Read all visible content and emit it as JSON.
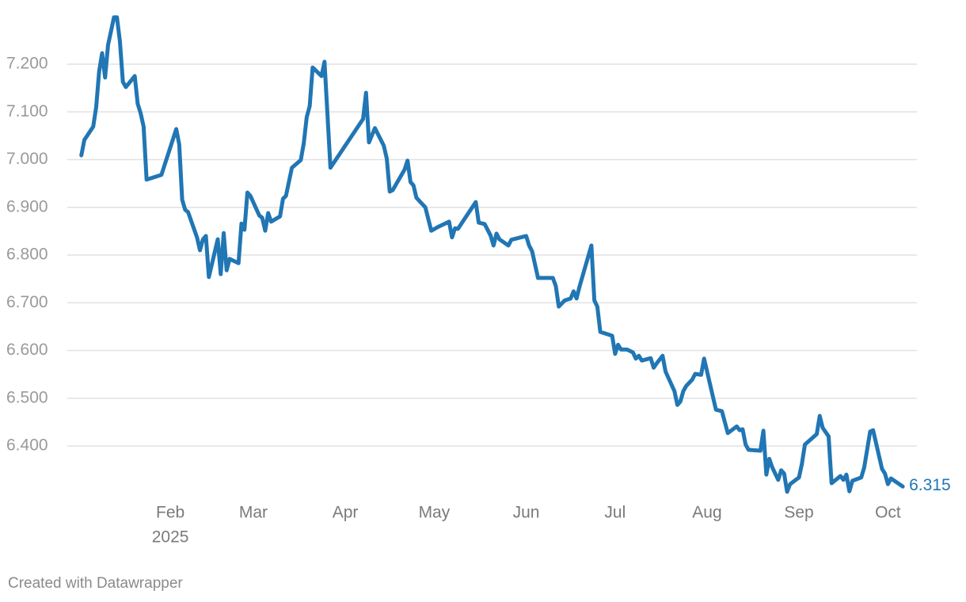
{
  "chart_data": {
    "type": "line",
    "color": "#2176b4",
    "x": [
      2,
      3,
      6,
      7,
      8,
      9,
      10,
      11,
      13,
      14,
      15,
      16,
      17,
      20,
      21,
      22,
      23,
      24,
      29,
      34,
      35,
      36,
      37,
      38,
      41,
      42,
      43,
      44,
      45,
      48,
      49,
      50,
      51,
      52,
      55,
      56,
      57,
      58,
      59,
      62,
      63,
      64,
      65,
      66,
      69,
      70,
      71,
      73,
      76,
      77,
      78,
      79,
      80,
      83,
      84,
      86,
      97,
      98,
      99,
      101,
      104,
      105,
      106,
      107,
      111,
      112,
      113,
      114,
      115,
      118,
      120,
      122,
      126,
      127,
      128,
      129,
      135,
      136,
      138,
      140,
      141,
      142,
      143,
      146,
      147,
      152,
      153,
      154,
      156,
      161,
      162,
      163,
      165,
      167,
      168,
      169,
      170,
      174,
      175,
      176,
      177,
      181,
      182,
      183,
      184,
      186,
      188,
      189,
      190,
      191,
      194,
      195,
      196,
      198,
      199,
      202,
      203,
      204,
      205,
      206,
      208,
      209,
      211,
      212,
      216,
      218,
      220,
      223,
      224,
      225,
      226,
      227,
      231,
      232,
      233,
      234,
      235,
      237,
      238,
      239,
      240,
      241,
      244,
      245,
      246,
      250,
      251,
      252,
      254,
      255,
      258,
      259,
      260,
      261,
      262,
      265,
      266,
      268,
      269,
      272,
      273,
      274,
      275,
      279
    ],
    "values": [
      7.009,
      7.041,
      7.069,
      7.11,
      7.185,
      7.223,
      7.172,
      7.24,
      7.298,
      7.298,
      7.248,
      7.163,
      7.152,
      7.175,
      7.117,
      7.097,
      7.069,
      6.958,
      6.968,
      7.064,
      7.032,
      6.916,
      6.895,
      6.89,
      6.837,
      6.81,
      6.833,
      6.84,
      6.754,
      6.833,
      6.76,
      6.846,
      6.768,
      6.792,
      6.783,
      6.866,
      6.853,
      6.931,
      6.924,
      6.883,
      6.878,
      6.851,
      6.888,
      6.87,
      6.881,
      6.918,
      6.924,
      6.983,
      6.999,
      7.034,
      7.089,
      7.112,
      7.193,
      7.175,
      7.205,
      6.983,
      7.085,
      7.14,
      7.036,
      7.066,
      7.029,
      7.002,
      6.933,
      6.936,
      6.979,
      6.998,
      6.953,
      6.946,
      6.92,
      6.9,
      6.851,
      6.858,
      6.87,
      6.837,
      6.856,
      6.855,
      6.911,
      6.868,
      6.865,
      6.841,
      6.82,
      6.845,
      6.833,
      6.82,
      6.832,
      6.84,
      6.82,
      6.808,
      6.752,
      6.752,
      6.735,
      6.692,
      6.705,
      6.709,
      6.724,
      6.709,
      6.734,
      6.82,
      6.705,
      6.692,
      6.639,
      6.631,
      6.593,
      6.612,
      6.602,
      6.602,
      6.596,
      6.583,
      6.589,
      6.579,
      6.584,
      6.564,
      6.573,
      6.589,
      6.556,
      6.515,
      6.486,
      6.493,
      6.515,
      6.526,
      6.539,
      6.551,
      6.549,
      6.583,
      6.476,
      6.473,
      6.427,
      6.441,
      6.433,
      6.435,
      6.403,
      6.392,
      6.39,
      6.432,
      6.34,
      6.373,
      6.355,
      6.329,
      6.349,
      6.342,
      6.304,
      6.32,
      6.334,
      6.363,
      6.403,
      6.425,
      6.463,
      6.438,
      6.42,
      6.322,
      6.337,
      6.329,
      6.34,
      6.305,
      6.327,
      6.334,
      6.355,
      6.43,
      6.433,
      6.352,
      6.342,
      6.32,
      6.332,
      6.315
    ],
    "xlim": [
      1,
      285
    ],
    "xticks": [
      {
        "value": 32,
        "label": "Feb"
      },
      {
        "value": 60,
        "label": "Mar"
      },
      {
        "value": 91,
        "label": "Apr"
      },
      {
        "value": 121,
        "label": "May"
      },
      {
        "value": 152,
        "label": "Jun"
      },
      {
        "value": 182,
        "label": "Jul"
      },
      {
        "value": 213,
        "label": "Aug"
      },
      {
        "value": 244,
        "label": "Sep"
      },
      {
        "value": 274,
        "label": "Oct"
      }
    ],
    "x_year_label": "2025",
    "ylim": [
      6.29,
      7.31
    ],
    "yticks": [
      {
        "value": 6.4,
        "label": "6.400"
      },
      {
        "value": 6.5,
        "label": "6.500"
      },
      {
        "value": 6.6,
        "label": "6.600"
      },
      {
        "value": 6.7,
        "label": "6.700"
      },
      {
        "value": 6.8,
        "label": "6.800"
      },
      {
        "value": 6.9,
        "label": "6.900"
      },
      {
        "value": 7.0,
        "label": "7.000"
      },
      {
        "value": 7.1,
        "label": "7.100"
      },
      {
        "value": 7.2,
        "label": "7.200"
      }
    ],
    "grid": true
  },
  "footer": "Created with Datawrapper"
}
